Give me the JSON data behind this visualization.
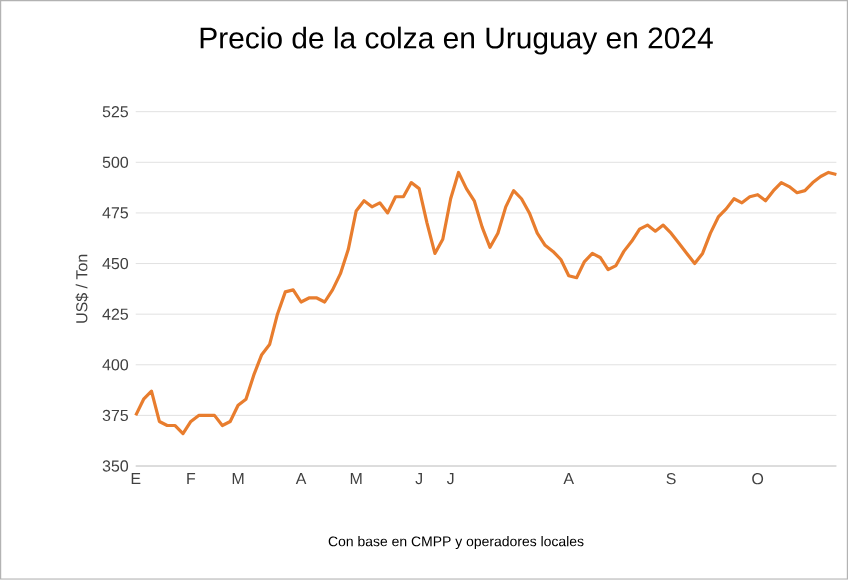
{
  "chart_data": {
    "type": "line",
    "title": "Precio de la colza en Uruguay en 2024",
    "ylabel": "US$ / Ton",
    "annotations": [
      "Con base en CMPP y operadores locales"
    ],
    "categories": [
      "E",
      null,
      null,
      null,
      null,
      null,
      null,
      "F",
      null,
      null,
      null,
      null,
      null,
      "M",
      null,
      null,
      null,
      null,
      null,
      null,
      null,
      "A",
      null,
      null,
      null,
      null,
      null,
      null,
      "M",
      null,
      null,
      null,
      null,
      null,
      null,
      null,
      "J",
      null,
      null,
      null,
      "J",
      null,
      null,
      null,
      null,
      null,
      null,
      null,
      null,
      null,
      null,
      null,
      null,
      null,
      null,
      "A",
      null,
      null,
      null,
      null,
      null,
      null,
      null,
      null,
      null,
      null,
      null,
      null,
      "S",
      null,
      null,
      null,
      null,
      null,
      null,
      null,
      null,
      null,
      null,
      "O",
      null,
      null,
      null,
      null,
      null,
      null,
      null,
      null,
      null,
      null
    ],
    "series": [
      {
        "color": "#e87d2e",
        "values": [
          375,
          383,
          387,
          372,
          370,
          370,
          366,
          372,
          375,
          375,
          375,
          370,
          372,
          380,
          383,
          395,
          405,
          410,
          425,
          436,
          437,
          431,
          433,
          433,
          431,
          437,
          445,
          457,
          476,
          481,
          478,
          480,
          475,
          483,
          483,
          490,
          487,
          470,
          455,
          462,
          482,
          495,
          487,
          481,
          468,
          458,
          465,
          478,
          486,
          482,
          475,
          465,
          459,
          456,
          452,
          444,
          443,
          451,
          455,
          453,
          447,
          449,
          456,
          461,
          467,
          469,
          466,
          469,
          465,
          460,
          455,
          450,
          455,
          465,
          473,
          477,
          482,
          480,
          483,
          484,
          481,
          486,
          490,
          488,
          485,
          486,
          490,
          493,
          495,
          494
        ]
      }
    ],
    "ylim": [
      350,
      525
    ],
    "yticks": [
      350,
      375,
      400,
      425,
      450,
      475,
      500,
      525
    ],
    "grid": "y",
    "line_style": "solid",
    "marker": "none"
  }
}
